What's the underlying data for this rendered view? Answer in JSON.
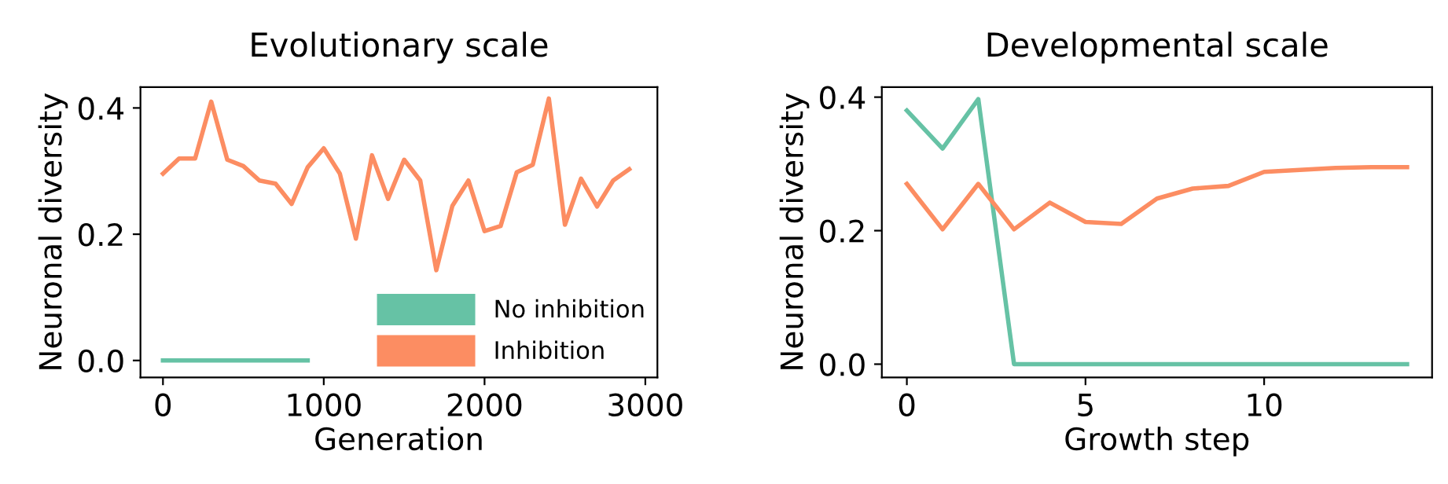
{
  "chart_data": [
    {
      "type": "line",
      "title": "Evolutionary scale",
      "xlabel": "Generation",
      "ylabel": "Neuronal diversity",
      "xlim": [
        -140,
        3075
      ],
      "ylim": [
        -0.027,
        0.433
      ],
      "xticks": [
        0,
        1000,
        2000,
        3000
      ],
      "yticks": [
        {
          "value": 0,
          "label": "0.0"
        },
        {
          "value": 0.2,
          "label": "0.2"
        },
        {
          "value": 0.4,
          "label": "0.4"
        }
      ],
      "grid": false,
      "legend": "bottom right",
      "series": [
        {
          "name": "No inhibition",
          "color": "#66c2a5",
          "x": [
            0,
            100,
            200,
            300,
            400,
            500,
            600,
            700,
            800,
            900
          ],
          "values": [
            0,
            0,
            0,
            0,
            0,
            0,
            0,
            0,
            0,
            0
          ]
        },
        {
          "name": "Inhibition",
          "color": "#fc8d62",
          "x": [
            0,
            100,
            200,
            300,
            400,
            500,
            600,
            700,
            800,
            900,
            1000,
            1100,
            1200,
            1300,
            1400,
            1500,
            1600,
            1700,
            1800,
            1900,
            2000,
            2100,
            2200,
            2300,
            2400,
            2500,
            2600,
            2700,
            2800,
            2900
          ],
          "values": [
            0.296,
            0.32,
            0.32,
            0.41,
            0.318,
            0.308,
            0.285,
            0.28,
            0.248,
            0.306,
            0.336,
            0.296,
            0.193,
            0.325,
            0.256,
            0.318,
            0.285,
            0.143,
            0.245,
            0.285,
            0.205,
            0.213,
            0.298,
            0.31,
            0.415,
            0.215,
            0.288,
            0.244,
            0.285,
            0.303
          ]
        }
      ]
    },
    {
      "type": "line",
      "title": "Developmental scale",
      "xlabel": "Growth step",
      "ylabel": "Neuronal diversity",
      "xlim": [
        -0.7,
        14.7
      ],
      "ylim": [
        -0.02,
        0.415
      ],
      "xticks": [
        0,
        5,
        10
      ],
      "yticks": [
        {
          "value": 0,
          "label": "0.0"
        },
        {
          "value": 0.2,
          "label": "0.2"
        },
        {
          "value": 0.4,
          "label": "0.4"
        }
      ],
      "grid": false,
      "series": [
        {
          "color": "#66c2a5",
          "x": [
            0,
            1,
            2,
            3,
            4,
            5,
            6,
            7,
            8,
            9,
            10,
            11,
            12,
            13,
            14
          ],
          "values": [
            0.38,
            0.323,
            0.397,
            0,
            0,
            0,
            0,
            0,
            0,
            0,
            0,
            0,
            0,
            0,
            0
          ]
        },
        {
          "color": "#fc8d62",
          "x": [
            0,
            1,
            2,
            3,
            4,
            5,
            6,
            7,
            8,
            9,
            10,
            11,
            12,
            13,
            14
          ],
          "values": [
            0.27,
            0.202,
            0.27,
            0.202,
            0.242,
            0.213,
            0.21,
            0.248,
            0.263,
            0.267,
            0.288,
            0.291,
            0.294,
            0.295,
            0.295
          ]
        }
      ]
    }
  ]
}
